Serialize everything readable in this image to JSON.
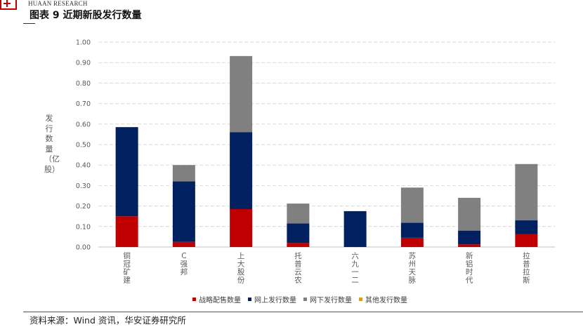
{
  "header": {
    "brand": "HUAAN RESEARCH",
    "figure_title": "图表 9 近期新股发行数量"
  },
  "footer": {
    "source": "资料来源：Wind 资讯，华安证券研究所"
  },
  "colors": {
    "strategic": "#c00000",
    "online": "#002060",
    "offline": "#808080",
    "other": "#e0a000",
    "grid": "#d9d9d9",
    "axis_text": "#595959"
  },
  "chart_data": {
    "type": "bar",
    "stacked": true,
    "title": "",
    "xlabel": "",
    "ylabel": "发行数量（亿股）",
    "ylim": [
      0,
      1.0
    ],
    "yticks": [
      "0.00",
      "0.10",
      "0.20",
      "0.30",
      "0.40",
      "0.50",
      "0.60",
      "0.70",
      "0.80",
      "0.90",
      "1.00"
    ],
    "grid": true,
    "legend_position": "bottom",
    "categories": [
      "铜冠矿建",
      "C强邦",
      "上大股份",
      "托普云农",
      "六九一二",
      "苏州天脉",
      "新铝时代",
      "拉普拉斯"
    ],
    "series": [
      {
        "name": "战略配售数量",
        "color_key": "strategic",
        "values": [
          0.15,
          0.025,
          0.185,
          0.02,
          0.0,
          0.045,
          0.013,
          0.062
        ]
      },
      {
        "name": "网上发行数量",
        "color_key": "online",
        "values": [
          0.435,
          0.295,
          0.375,
          0.095,
          0.175,
          0.073,
          0.067,
          0.068
        ]
      },
      {
        "name": "网下发行数量",
        "color_key": "offline",
        "values": [
          0.0,
          0.08,
          0.372,
          0.097,
          0.0,
          0.172,
          0.16,
          0.275
        ]
      },
      {
        "name": "其他发行数量",
        "color_key": "other",
        "values": [
          0,
          0,
          0,
          0,
          0,
          0,
          0,
          0
        ]
      }
    ]
  }
}
